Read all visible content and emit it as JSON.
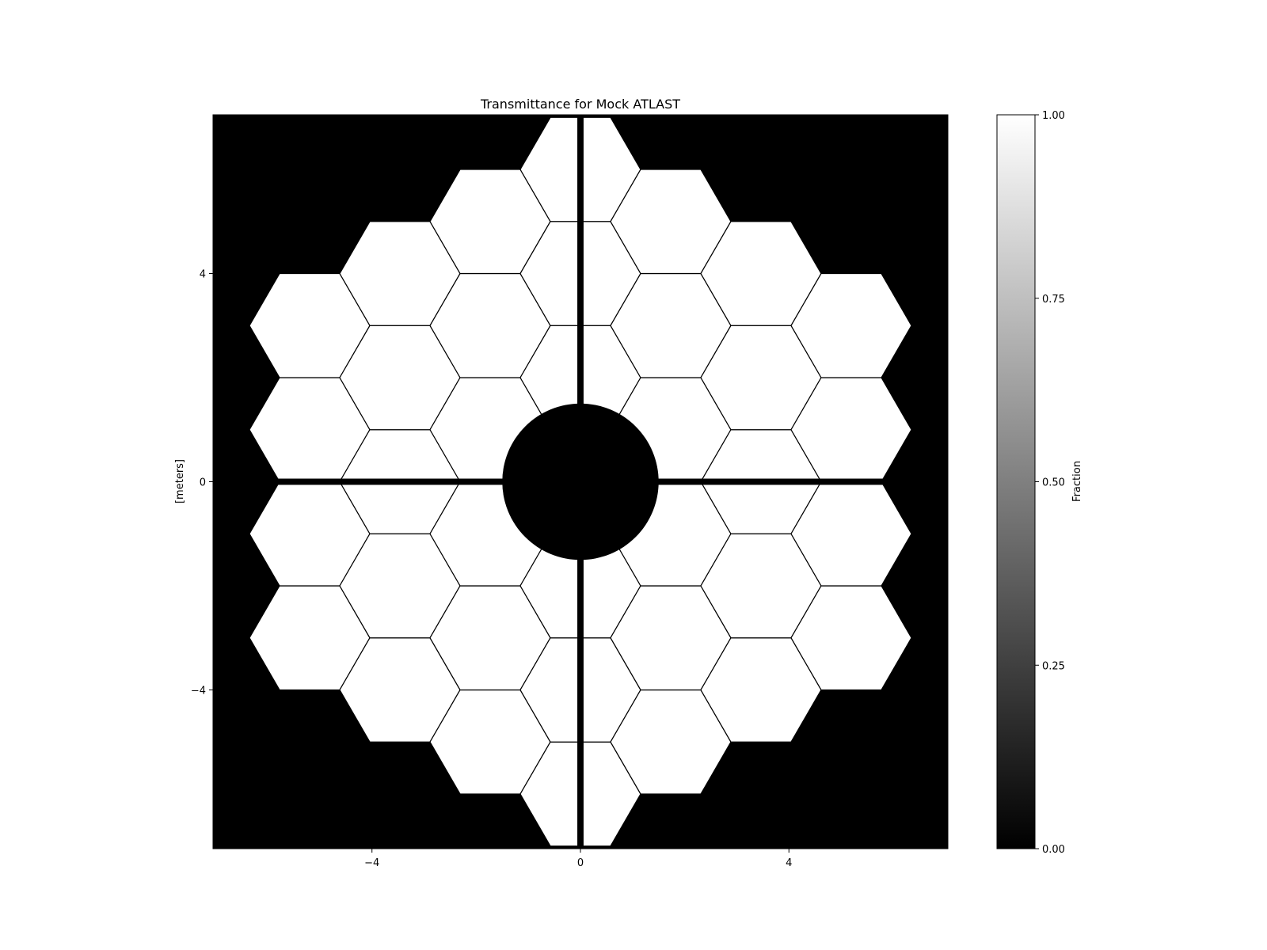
{
  "chart_data": {
    "type": "heatmap",
    "title": "Transmittance for Mock ATLAST",
    "xlabel": "",
    "ylabel": "[meters]",
    "xlim": [
      -7.05,
      7.05
    ],
    "ylim": [
      -7.05,
      7.05
    ],
    "xticks": [
      -4,
      0,
      4
    ],
    "yticks": [
      -4,
      0,
      4
    ],
    "xtick_labels": [
      "−4",
      "0",
      "4"
    ],
    "ytick_labels": [
      "−4",
      "0",
      "4"
    ],
    "grid": false,
    "colormap": "gray",
    "colorbar": {
      "label": "Fraction",
      "range": [
        0.0,
        1.0
      ],
      "ticks": [
        0.0,
        0.25,
        0.5,
        0.75,
        1.0
      ],
      "tick_labels": [
        "0.00",
        "0.25",
        "0.50",
        "0.75",
        "1.00"
      ]
    },
    "aperture": {
      "segment_shape": "hexagon (flat-top)",
      "segment_flat_to_flat": 2.0,
      "segment_circumradius": 1.1547,
      "segment_gap": 0.02,
      "segment_transmittance": 1.0,
      "background_transmittance": 0.0,
      "segment_rings": 3,
      "segment_count": 36,
      "central_obscuration_diameter": 3.0,
      "spider_width": 0.12,
      "spider_angles_deg": [
        0,
        90,
        180,
        270
      ]
    }
  },
  "colors": {
    "background": "#000000",
    "segment": "#ffffff",
    "gap_line": "#000000",
    "frame": "#000000"
  }
}
